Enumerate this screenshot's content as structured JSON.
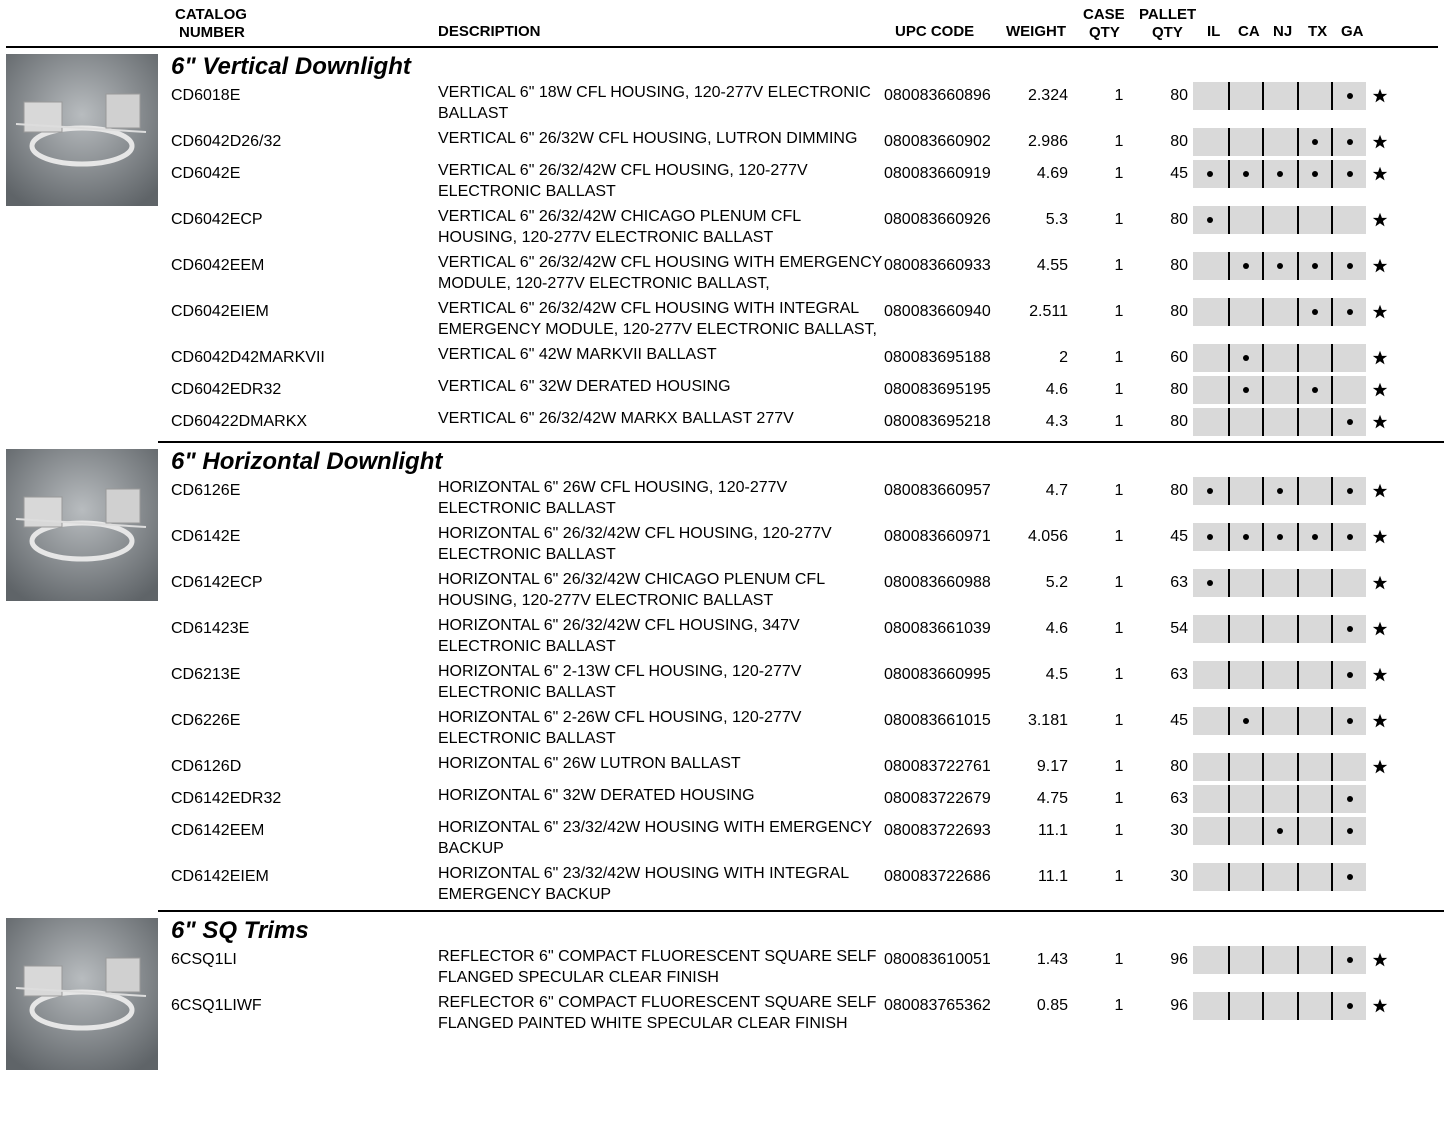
{
  "header": {
    "catalog_number": [
      "CATALOG",
      "NUMBER"
    ],
    "description": "DESCRIPTION",
    "upc_code": "UPC CODE",
    "weight": "WEIGHT",
    "case_qty": [
      "CASE",
      "QTY"
    ],
    "pallet_qty": [
      "PALLET",
      "QTY"
    ],
    "states": [
      "IL",
      "CA",
      "NJ",
      "TX",
      "GA"
    ]
  },
  "sections": [
    {
      "title": "6\" Vertical Downlight",
      "rows": [
        {
          "catalog": "CD6018E",
          "description": "VERTICAL 6\" 18W CFL HOUSING, 120-277V ELECTRONIC BALLAST",
          "upc": "080083660896",
          "weight": "2.324",
          "case_qty": "1",
          "pallet_qty": "80",
          "states": [
            false,
            false,
            false,
            false,
            true
          ],
          "star": true
        },
        {
          "catalog": "CD6042D26/32",
          "description": "VERTICAL 6\" 26/32W CFL HOUSING, LUTRON DIMMING",
          "upc": "080083660902",
          "weight": "2.986",
          "case_qty": "1",
          "pallet_qty": "80",
          "states": [
            false,
            false,
            false,
            true,
            true
          ],
          "star": true
        },
        {
          "catalog": "CD6042E",
          "description": "VERTICAL 6\" 26/32/42W CFL HOUSING, 120-277V ELECTRONIC BALLAST",
          "upc": "080083660919",
          "weight": "4.69",
          "case_qty": "1",
          "pallet_qty": "45",
          "states": [
            true,
            true,
            true,
            true,
            true
          ],
          "star": true
        },
        {
          "catalog": "CD6042ECP",
          "description": "VERTICAL 6\" 26/32/42W CHICAGO PLENUM CFL HOUSING, 120-277V ELECTRONIC BALLAST",
          "upc": "080083660926",
          "weight": "5.3",
          "case_qty": "1",
          "pallet_qty": "80",
          "states": [
            true,
            false,
            false,
            false,
            false
          ],
          "star": true
        },
        {
          "catalog": "CD6042EEM",
          "description": "VERTICAL 6\" 26/32/42W CFL HOUSING WITH EMERGENCY MODULE, 120-277V ELECTRONIC BALLAST,",
          "upc": "080083660933",
          "weight": "4.55",
          "case_qty": "1",
          "pallet_qty": "80",
          "states": [
            false,
            true,
            true,
            true,
            true
          ],
          "star": true
        },
        {
          "catalog": "CD6042EIEM",
          "description": "VERTICAL 6\" 26/32/42W CFL HOUSING WITH INTEGRAL EMERGENCY MODULE, 120-277V ELECTRONIC BALLAST,",
          "upc": "080083660940",
          "weight": "2.511",
          "case_qty": "1",
          "pallet_qty": "80",
          "states": [
            false,
            false,
            false,
            true,
            true
          ],
          "star": true
        },
        {
          "catalog": "CD6042D42MARKVII",
          "description": "VERTICAL 6\" 42W MARKVII BALLAST",
          "upc": "080083695188",
          "weight": "2",
          "case_qty": "1",
          "pallet_qty": "60",
          "states": [
            false,
            true,
            false,
            false,
            false
          ],
          "star": true
        },
        {
          "catalog": "CD6042EDR32",
          "description": "VERTICAL 6\" 32W DERATED HOUSING",
          "upc": "080083695195",
          "weight": "4.6",
          "case_qty": "1",
          "pallet_qty": "80",
          "states": [
            false,
            true,
            false,
            true,
            false
          ],
          "star": true
        },
        {
          "catalog": "CD60422DMARKX",
          "description": "VERTICAL 6\" 26/32/42W MARKX BALLAST 277V",
          "upc": "080083695218",
          "weight": "4.3",
          "case_qty": "1",
          "pallet_qty": "80",
          "states": [
            false,
            false,
            false,
            false,
            true
          ],
          "star": true
        }
      ]
    },
    {
      "title": "6\" Horizontal Downlight",
      "rows": [
        {
          "catalog": "CD6126E",
          "description": "HORIZONTAL 6\" 26W CFL HOUSING, 120-277V ELECTRONIC BALLAST",
          "upc": "080083660957",
          "weight": "4.7",
          "case_qty": "1",
          "pallet_qty": "80",
          "states": [
            true,
            false,
            true,
            false,
            true
          ],
          "star": true
        },
        {
          "catalog": "CD6142E",
          "description": "HORIZONTAL 6\" 26/32/42W CFL HOUSING, 120-277V ELECTRONIC BALLAST",
          "upc": "080083660971",
          "weight": "4.056",
          "case_qty": "1",
          "pallet_qty": "45",
          "states": [
            true,
            true,
            true,
            true,
            true
          ],
          "star": true
        },
        {
          "catalog": "CD6142ECP",
          "description": "HORIZONTAL 6\" 26/32/42W CHICAGO PLENUM CFL HOUSING, 120-277V ELECTRONIC BALLAST",
          "upc": "080083660988",
          "weight": "5.2",
          "case_qty": "1",
          "pallet_qty": "63",
          "states": [
            true,
            false,
            false,
            false,
            false
          ],
          "star": true
        },
        {
          "catalog": "CD61423E",
          "description": "HORIZONTAL 6\" 26/32/42W CFL HOUSING, 347V ELECTRONIC BALLAST",
          "upc": "080083661039",
          "weight": "4.6",
          "case_qty": "1",
          "pallet_qty": "54",
          "states": [
            false,
            false,
            false,
            false,
            true
          ],
          "star": true
        },
        {
          "catalog": "CD6213E",
          "description": "HORIZONTAL 6\" 2-13W CFL HOUSING, 120-277V ELECTRONIC BALLAST",
          "upc": "080083660995",
          "weight": "4.5",
          "case_qty": "1",
          "pallet_qty": "63",
          "states": [
            false,
            false,
            false,
            false,
            true
          ],
          "star": true
        },
        {
          "catalog": "CD6226E",
          "description": "HORIZONTAL 6\" 2-26W CFL HOUSING, 120-277V ELECTRONIC BALLAST",
          "upc": "080083661015",
          "weight": "3.181",
          "case_qty": "1",
          "pallet_qty": "45",
          "states": [
            false,
            true,
            false,
            false,
            true
          ],
          "star": true
        },
        {
          "catalog": "CD6126D",
          "description": "HORIZONTAL 6\" 26W LUTRON BALLAST",
          "upc": "080083722761",
          "weight": "9.17",
          "case_qty": "1",
          "pallet_qty": "80",
          "states": [
            false,
            false,
            false,
            false,
            false
          ],
          "star": true
        },
        {
          "catalog": "CD6142EDR32",
          "description": "HORIZONTAL 6\" 32W DERATED HOUSING",
          "upc": "080083722679",
          "weight": "4.75",
          "case_qty": "1",
          "pallet_qty": "63",
          "states": [
            false,
            false,
            false,
            false,
            true
          ],
          "star": false
        },
        {
          "catalog": "CD6142EEM",
          "description": "HORIZONTAL 6\" 23/32/42W HOUSING WITH EMERGENCY BACKUP",
          "upc": "080083722693",
          "weight": "11.1",
          "case_qty": "1",
          "pallet_qty": "30",
          "states": [
            false,
            false,
            true,
            false,
            true
          ],
          "star": false
        },
        {
          "catalog": "CD6142EIEM",
          "description": "HORIZONTAL 6\" 23/32/42W HOUSING WITH INTEGRAL EMERGENCY BACKUP",
          "upc": "080083722686",
          "weight": "11.1",
          "case_qty": "1",
          "pallet_qty": "30",
          "states": [
            false,
            false,
            false,
            false,
            true
          ],
          "star": false
        }
      ]
    },
    {
      "title": "6\" SQ Trims",
      "rows": [
        {
          "catalog": "6CSQ1LI",
          "description": "REFLECTOR 6\" COMPACT FLUORESCENT SQUARE SELF FLANGED SPECULAR CLEAR FINISH",
          "upc": "080083610051",
          "weight": "1.43",
          "case_qty": "1",
          "pallet_qty": "96",
          "states": [
            false,
            false,
            false,
            false,
            true
          ],
          "star": true
        },
        {
          "catalog": "6CSQ1LIWF",
          "description": "REFLECTOR 6\" COMPACT FLUORESCENT SQUARE SELF FLANGED PAINTED WHITE SPECULAR CLEAR FINISH",
          "upc": "080083765362",
          "weight": "0.85",
          "case_qty": "1",
          "pallet_qty": "96",
          "states": [
            false,
            false,
            false,
            false,
            true
          ],
          "star": true
        }
      ]
    }
  ]
}
